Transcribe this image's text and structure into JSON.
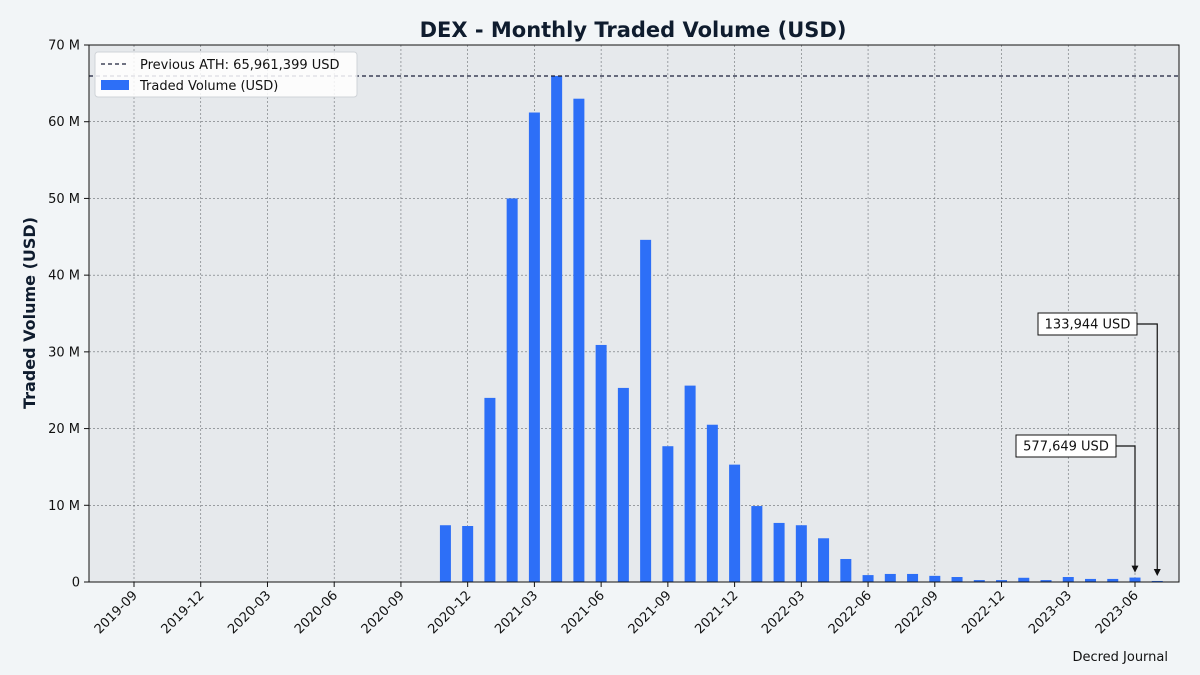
{
  "chart_data": {
    "type": "bar",
    "title": "DEX - Monthly Traded Volume (USD)",
    "xlabel": "",
    "ylabel": "Traded Volume (USD)",
    "ylim": [
      0,
      70000000
    ],
    "y_ticks": [
      0,
      10000000,
      20000000,
      30000000,
      40000000,
      50000000,
      60000000,
      70000000
    ],
    "y_tick_labels": [
      "0",
      "10 M",
      "20 M",
      "30 M",
      "40 M",
      "50 M",
      "60 M",
      "70 M"
    ],
    "x_tick_labels": [
      "2019-09",
      "2019-12",
      "2020-03",
      "2020-06",
      "2020-09",
      "2020-12",
      "2021-03",
      "2021-06",
      "2021-09",
      "2021-12",
      "2022-03",
      "2022-06",
      "2022-09",
      "2022-12",
      "2023-03",
      "2023-06"
    ],
    "grid": true,
    "legend_position": "top-left",
    "categories": [
      "2020-11",
      "2020-12",
      "2021-01",
      "2021-02",
      "2021-03",
      "2021-04",
      "2021-05",
      "2021-06",
      "2021-07",
      "2021-08",
      "2021-09",
      "2021-10",
      "2021-11",
      "2021-12",
      "2022-01",
      "2022-02",
      "2022-03",
      "2022-04",
      "2022-05",
      "2022-06",
      "2022-07",
      "2022-08",
      "2022-09",
      "2022-10",
      "2022-11",
      "2022-12",
      "2023-01",
      "2023-02",
      "2023-03",
      "2023-04",
      "2023-05",
      "2023-06",
      "2023-07"
    ],
    "series": [
      {
        "name": "Traded Volume (USD)",
        "color": "#2d6ff7",
        "values": [
          7400000,
          7300000,
          24000000,
          50000000,
          61200000,
          65961399,
          63000000,
          30900000,
          25300000,
          44600000,
          17700000,
          25600000,
          20500000,
          15300000,
          9900000,
          7700000,
          7400000,
          5700000,
          3000000,
          900000,
          1050000,
          1050000,
          800000,
          650000,
          250000,
          250000,
          550000,
          250000,
          650000,
          400000,
          400000,
          577649,
          133944
        ]
      }
    ],
    "reference_line": {
      "name": "Previous ATH: 65,961,399 USD",
      "value": 65961399,
      "style": "dashed",
      "color": "#1b1f3a"
    },
    "annotations": [
      {
        "text": "577,649 USD",
        "category": "2023-06",
        "value": 577649
      },
      {
        "text": "133,944 USD",
        "category": "2023-07",
        "value": 133944
      }
    ],
    "credit": "Decred Journal"
  }
}
